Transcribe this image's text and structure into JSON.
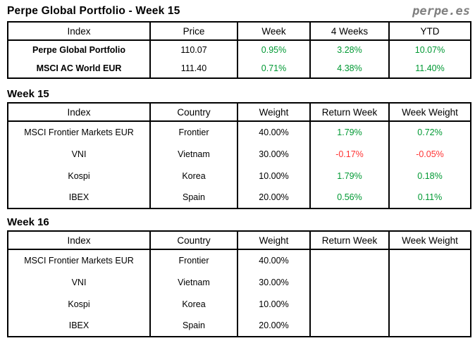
{
  "page": {
    "title": "Perpe Global Portfolio - Week 15",
    "logo": "perpe.es"
  },
  "colors": {
    "positive": "#009933",
    "negative": "#ff3333",
    "logo": "#7f7f7f",
    "border": "#000000"
  },
  "summary_table": {
    "headers": [
      "Index",
      "Price",
      "Week",
      "4 Weeks",
      "YTD"
    ],
    "rows": [
      {
        "index": "Perpe Global Portfolio",
        "price": "110.07",
        "week": "0.95%",
        "four_weeks": "3.28%",
        "ytd": "10.07%"
      },
      {
        "index": "MSCI AC World EUR",
        "price": "111.40",
        "week": "0.71%",
        "four_weeks": "4.38%",
        "ytd": "11.40%"
      }
    ]
  },
  "week15_section": {
    "heading": "Week 15",
    "table": {
      "headers": [
        "Index",
        "Country",
        "Weight",
        "Return Week",
        "Week Weight"
      ],
      "rows": [
        {
          "index": "MSCI Frontier Markets EUR",
          "country": "Frontier",
          "weight": "40.00%",
          "return_week": "1.79%",
          "week_weight": "0.72%"
        },
        {
          "index": "VNI",
          "country": "Vietnam",
          "weight": "30.00%",
          "return_week": "-0.17%",
          "week_weight": "-0.05%"
        },
        {
          "index": "Kospi",
          "country": "Korea",
          "weight": "10.00%",
          "return_week": "1.79%",
          "week_weight": "0.18%"
        },
        {
          "index": "IBEX",
          "country": "Spain",
          "weight": "20.00%",
          "return_week": "0.56%",
          "week_weight": "0.11%"
        }
      ]
    }
  },
  "week16_section": {
    "heading": "Week 16",
    "table": {
      "headers": [
        "Index",
        "Country",
        "Weight",
        "Return Week",
        "Week Weight"
      ],
      "rows": [
        {
          "index": "MSCI Frontier Markets EUR",
          "country": "Frontier",
          "weight": "40.00%",
          "return_week": "",
          "week_weight": ""
        },
        {
          "index": "VNI",
          "country": "Vietnam",
          "weight": "30.00%",
          "return_week": "",
          "week_weight": ""
        },
        {
          "index": "Kospi",
          "country": "Korea",
          "weight": "10.00%",
          "return_week": "",
          "week_weight": ""
        },
        {
          "index": "IBEX",
          "country": "Spain",
          "weight": "20.00%",
          "return_week": "",
          "week_weight": ""
        }
      ]
    }
  }
}
